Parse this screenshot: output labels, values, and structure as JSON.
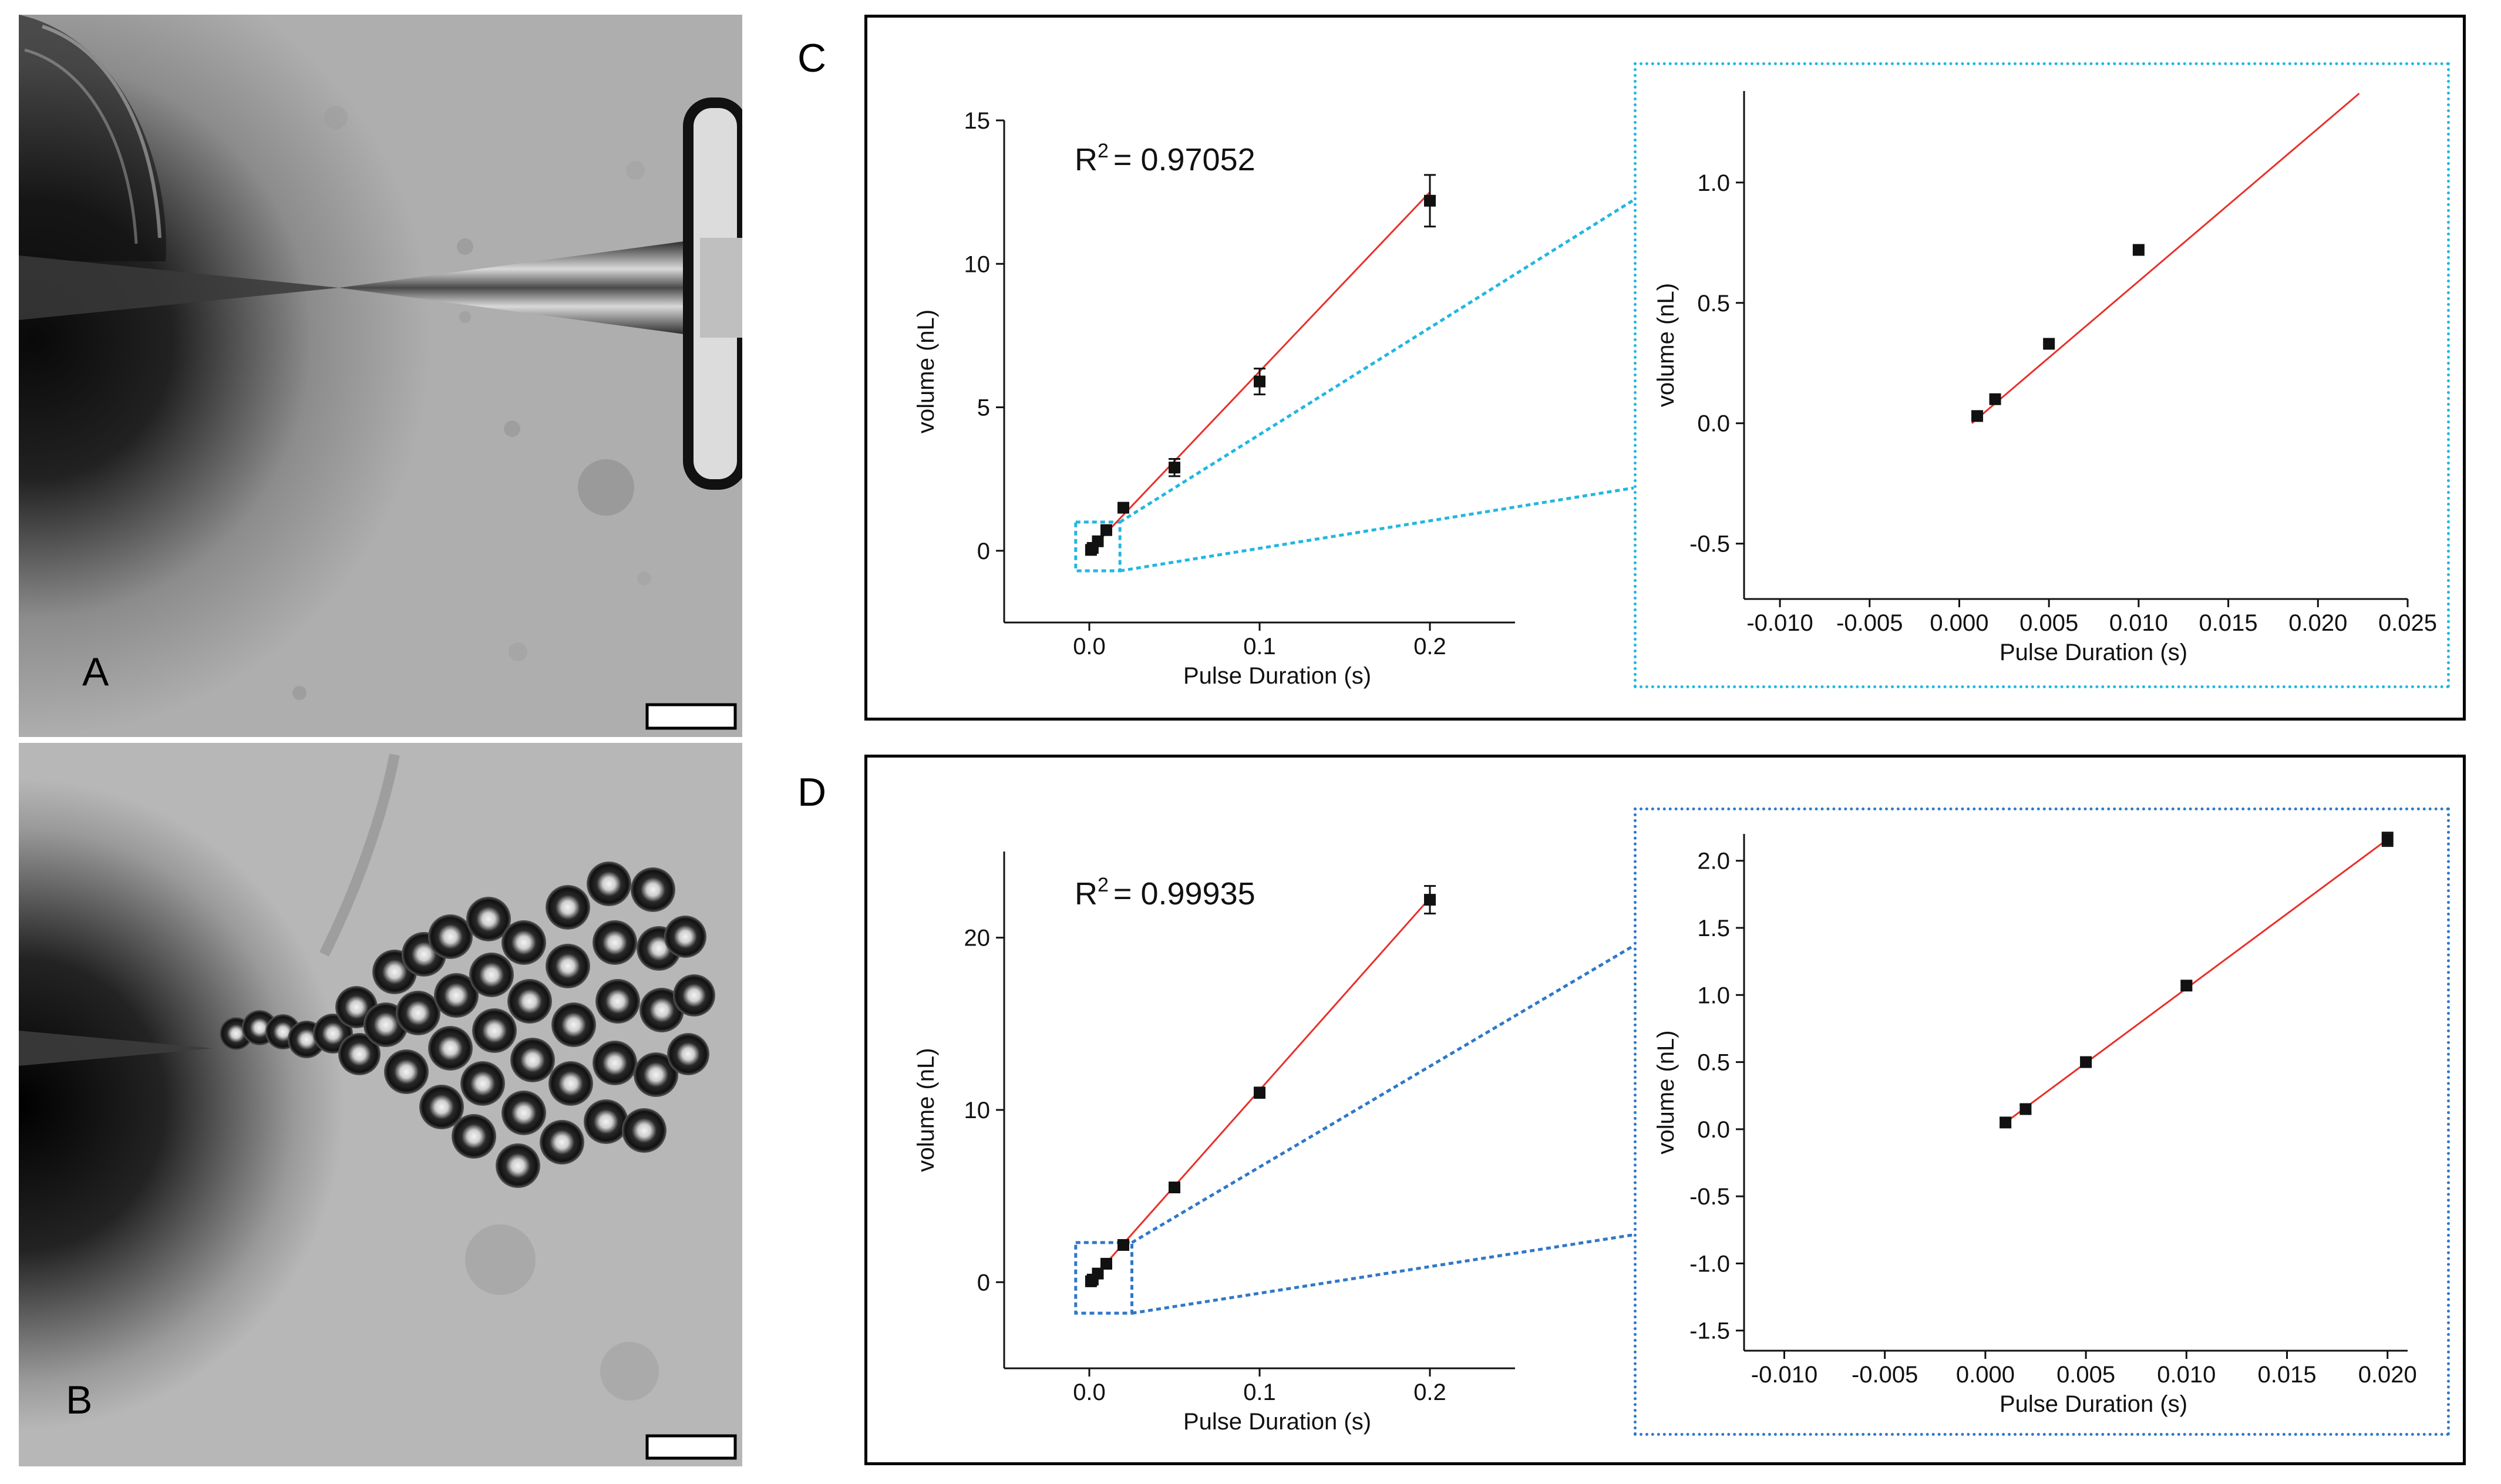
{
  "panels": {
    "a_label": "A",
    "b_label": "B",
    "c_label": "C",
    "d_label": "D"
  },
  "colors": {
    "fit_line": "#e8302a",
    "marker": "#111111",
    "zoom_c": "#22b7e0",
    "zoom_d": "#2f78c8",
    "frame": "#000000"
  },
  "chart_data": [
    {
      "id": "C-main",
      "type": "scatter",
      "title": "",
      "xlabel": "Pulse Duration (s)",
      "ylabel": "volume (nL)",
      "annotation_base": "R",
      "annotation_sup": "2",
      "annotation_value": "= 0.97052",
      "xlim": [
        -0.05,
        0.25
      ],
      "ylim": [
        -2.5,
        15
      ],
      "xticks": [
        0.0,
        0.1,
        0.2
      ],
      "xtick_labels": [
        "0.0",
        "0.1",
        "0.2"
      ],
      "yticks": [
        0,
        5,
        10,
        15
      ],
      "ytick_labels": [
        "0",
        "5",
        "10",
        "15"
      ],
      "points": [
        {
          "x": 0.001,
          "y": 0.03,
          "err": 0.05
        },
        {
          "x": 0.002,
          "y": 0.1,
          "err": 0.05
        },
        {
          "x": 0.005,
          "y": 0.33,
          "err": 0.05
        },
        {
          "x": 0.01,
          "y": 0.72,
          "err": 0.05
        },
        {
          "x": 0.02,
          "y": 1.5,
          "err": 0.15
        },
        {
          "x": 0.05,
          "y": 2.9,
          "err": 0.3
        },
        {
          "x": 0.1,
          "y": 5.9,
          "err": 0.45
        },
        {
          "x": 0.2,
          "y": 12.2,
          "err": 0.9
        }
      ],
      "fit": {
        "x0": 0.0,
        "y0": 0.0,
        "x1": 0.2,
        "y1": 12.5
      }
    },
    {
      "id": "C-inset",
      "type": "scatter",
      "title": "",
      "xlabel": "Pulse Duration (s)",
      "ylabel": "volume (nL)",
      "xlim": [
        -0.012,
        0.025
      ],
      "ylim": [
        -0.73,
        1.38
      ],
      "xticks": [
        -0.01,
        -0.005,
        0.0,
        0.005,
        0.01,
        0.015,
        0.02,
        0.025
      ],
      "xtick_labels": [
        "-0.010",
        "-0.005",
        "0.000",
        "0.005",
        "0.010",
        "0.015",
        "0.020",
        "0.025"
      ],
      "yticks": [
        -0.5,
        0.0,
        0.5,
        1.0
      ],
      "ytick_labels": [
        "-0.5",
        "0.0",
        "0.5",
        "1.0"
      ],
      "points": [
        {
          "x": 0.001,
          "y": 0.03
        },
        {
          "x": 0.002,
          "y": 0.1
        },
        {
          "x": 0.005,
          "y": 0.33
        },
        {
          "x": 0.01,
          "y": 0.72
        }
      ],
      "fit": {
        "x0": 0.0007,
        "y0": 0.0,
        "x1": 0.0223,
        "y1": 1.37
      }
    },
    {
      "id": "D-main",
      "type": "scatter",
      "title": "",
      "xlabel": "Pulse Duration (s)",
      "ylabel": "volume (nL)",
      "annotation_base": "R",
      "annotation_sup": "2",
      "annotation_value": "= 0.99935",
      "xlim": [
        -0.05,
        0.25
      ],
      "ylim": [
        -5,
        25
      ],
      "xticks": [
        0.0,
        0.1,
        0.2
      ],
      "xtick_labels": [
        "0.0",
        "0.1",
        "0.2"
      ],
      "yticks": [
        0,
        10,
        20
      ],
      "ytick_labels": [
        "0",
        "10",
        "20"
      ],
      "points": [
        {
          "x": 0.001,
          "y": 0.05,
          "err": 0.05
        },
        {
          "x": 0.002,
          "y": 0.15,
          "err": 0.05
        },
        {
          "x": 0.005,
          "y": 0.5,
          "err": 0.05
        },
        {
          "x": 0.01,
          "y": 1.07,
          "err": 0.05
        },
        {
          "x": 0.02,
          "y": 2.16,
          "err": 0.1
        },
        {
          "x": 0.05,
          "y": 5.5,
          "err": 0.2
        },
        {
          "x": 0.1,
          "y": 11.0,
          "err": 0.3
        },
        {
          "x": 0.2,
          "y": 22.2,
          "err": 0.8
        }
      ],
      "fit": {
        "x0": 0.0,
        "y0": 0.0,
        "x1": 0.2,
        "y1": 22.3
      }
    },
    {
      "id": "D-inset",
      "type": "scatter",
      "title": "",
      "xlabel": "Pulse Duration (s)",
      "ylabel": "volume (nL)",
      "xlim": [
        -0.012,
        0.021
      ],
      "ylim": [
        -1.65,
        2.2
      ],
      "xticks": [
        -0.01,
        -0.005,
        0.0,
        0.005,
        0.01,
        0.015,
        0.02
      ],
      "xtick_labels": [
        "-0.010",
        "-0.005",
        "0.000",
        "0.005",
        "0.010",
        "0.015",
        "0.020"
      ],
      "yticks": [
        -1.5,
        -1.0,
        -0.5,
        0.0,
        0.5,
        1.0,
        1.5,
        2.0
      ],
      "ytick_labels": [
        "-1.5",
        "-1.0",
        "-0.5",
        "0.0",
        "0.5",
        "1.0",
        "1.5",
        "2.0"
      ],
      "points": [
        {
          "x": 0.001,
          "y": 0.05,
          "err": 0.03
        },
        {
          "x": 0.002,
          "y": 0.15,
          "err": 0.03
        },
        {
          "x": 0.005,
          "y": 0.5,
          "err": 0.03
        },
        {
          "x": 0.01,
          "y": 1.07,
          "err": 0.03
        },
        {
          "x": 0.02,
          "y": 2.16,
          "err": 0.05
        }
      ],
      "fit": {
        "x0": 0.001,
        "y0": 0.05,
        "x1": 0.02,
        "y1": 2.16
      }
    }
  ]
}
